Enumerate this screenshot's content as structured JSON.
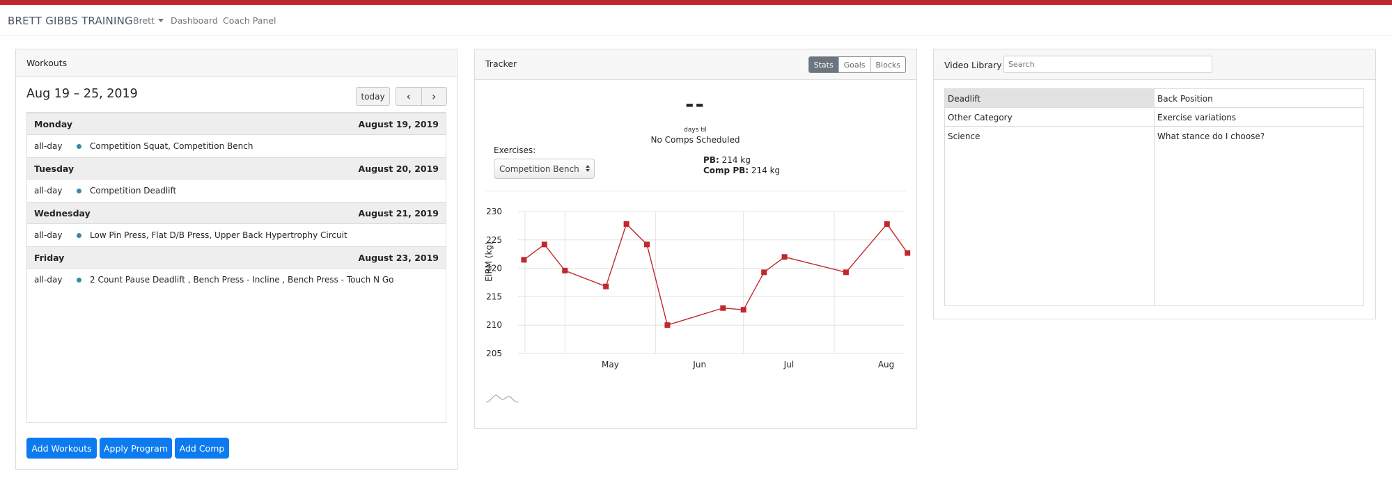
{
  "nav": {
    "brand": "BRETT GIBBS TRAINING",
    "user": "Brett",
    "dashboard": "Dashboard",
    "coach_panel": "Coach Panel"
  },
  "colors": {
    "accent_bar": "#c0282d",
    "primary": "#0d7bf0",
    "event_dot": "#3a87ad",
    "chart_line": "#c0282d"
  },
  "workouts": {
    "title": "Workouts",
    "range": "Aug 19 – 25, 2019",
    "today_label": "today",
    "prev_icon": "chevron-left-icon",
    "next_icon": "chevron-right-icon",
    "days": [
      {
        "name": "Monday",
        "date": "August 19, 2019",
        "all_day": "all-day",
        "event": "Competition Squat, Competition Bench"
      },
      {
        "name": "Tuesday",
        "date": "August 20, 2019",
        "all_day": "all-day",
        "event": "Competition Deadlift"
      },
      {
        "name": "Wednesday",
        "date": "August 21, 2019",
        "all_day": "all-day",
        "event": "Low Pin Press, Flat D/B Press, Upper Back Hypertrophy Circuit"
      },
      {
        "name": "Friday",
        "date": "August 23, 2019",
        "all_day": "all-day",
        "event": "2 Count Pause Deadlift , Bench Press - Incline , Bench Press - Touch N Go"
      }
    ],
    "buttons": {
      "add_workouts": "Add Workouts",
      "apply_program": "Apply Program",
      "add_comp": "Add Comp"
    }
  },
  "tracker": {
    "title": "Tracker",
    "tabs": {
      "stats": "Stats",
      "goals": "Goals",
      "blocks": "Blocks"
    },
    "days_value": "--",
    "days_til": "days til",
    "no_comps": "No Comps Scheduled",
    "exercises_label": "Exercises:",
    "exercise_selected": "Competition Bench",
    "pb_label": "PB:",
    "pb_value": "214 kg",
    "comp_pb_label": "Comp PB:",
    "comp_pb_value": "214 kg"
  },
  "chart_data": {
    "type": "line",
    "title": "",
    "xlabel": "",
    "ylabel": "EIRM (kg)",
    "ylim": [
      205,
      230
    ],
    "yticks": [
      205,
      210,
      215,
      220,
      225,
      230
    ],
    "xlim": [
      "2019-04-15",
      "2019-08-25"
    ],
    "xticks": [
      {
        "label": "May",
        "date": "2019-05-01"
      },
      {
        "label": "Jun",
        "date": "2019-06-01"
      },
      {
        "label": "Jul",
        "date": "2019-07-01"
      },
      {
        "label": "Aug",
        "date": "2019-08-01"
      }
    ],
    "grid": true,
    "series": [
      {
        "points": [
          {
            "x": "2019-04-17",
            "y": 221.5
          },
          {
            "x": "2019-04-24",
            "y": 224.2
          },
          {
            "x": "2019-05-01",
            "y": 219.6
          },
          {
            "x": "2019-05-15",
            "y": 216.8
          },
          {
            "x": "2019-05-22",
            "y": 227.8
          },
          {
            "x": "2019-05-29",
            "y": 224.2
          },
          {
            "x": "2019-06-05",
            "y": 210.0
          },
          {
            "x": "2019-06-24",
            "y": 213.0
          },
          {
            "x": "2019-07-01",
            "y": 212.7
          },
          {
            "x": "2019-07-08",
            "y": 219.3
          },
          {
            "x": "2019-07-15",
            "y": 222.0
          },
          {
            "x": "2019-08-05",
            "y": 219.3
          },
          {
            "x": "2019-08-19",
            "y": 227.8
          },
          {
            "x": "2019-08-26",
            "y": 222.7
          }
        ]
      }
    ]
  },
  "video_library": {
    "title": "Video Library -",
    "search_placeholder": "Search",
    "categories": [
      "Deadlift",
      "Other Category",
      "Science"
    ],
    "videos": [
      "Back Position",
      "Exercise variations",
      "What stance do I choose?"
    ]
  }
}
